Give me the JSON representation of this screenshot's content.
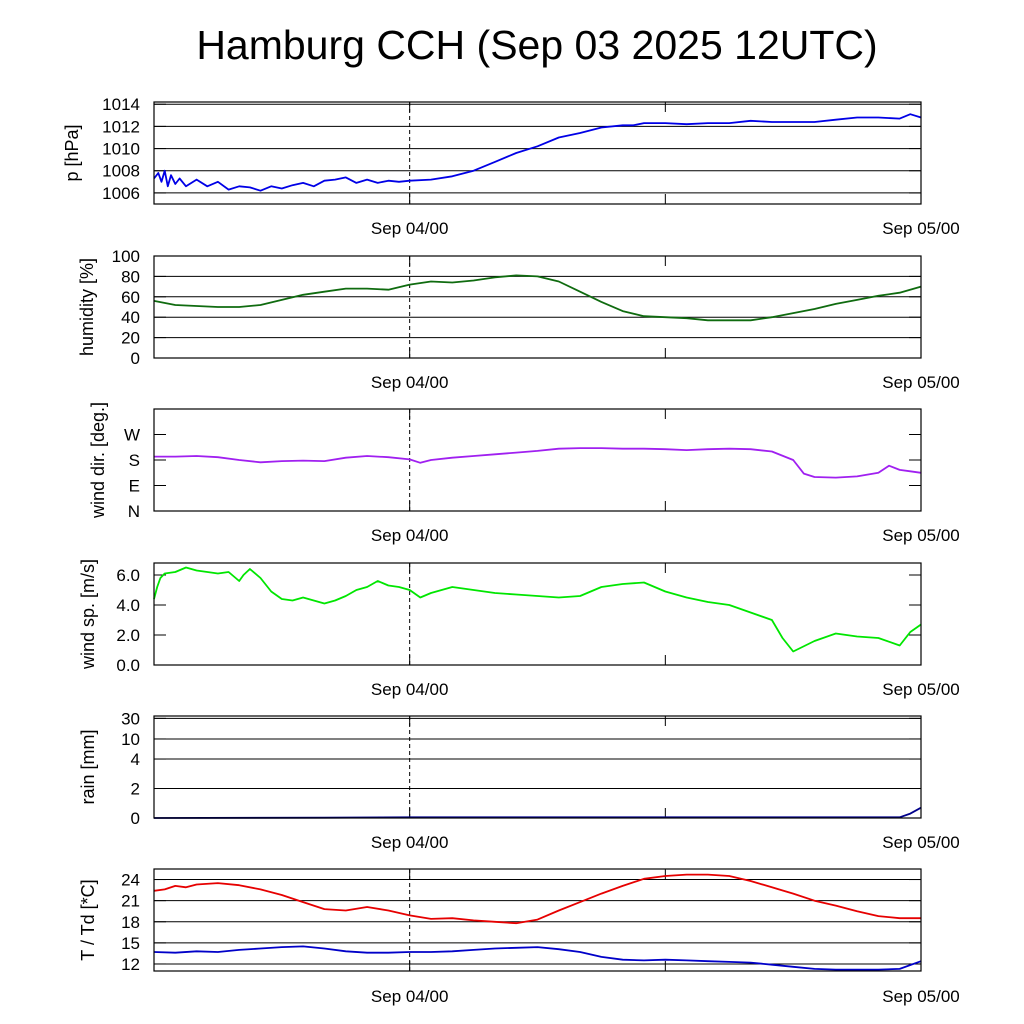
{
  "title": "Hamburg CCH (Sep 03 2025 12UTC)",
  "x_axis": {
    "type": "time",
    "start": "Sep 03 2025 12:00 UTC",
    "end": "Sep 05 2025 00:00 UTC",
    "range_hours": [
      0,
      36
    ],
    "tick_labels": [
      {
        "hour": 12,
        "label": "Sep 04/00"
      },
      {
        "hour": 36,
        "label": "Sep 05/00"
      }
    ],
    "minor_tick_hours": [
      24
    ],
    "dashed_marker_hour": 12
  },
  "chart_data": [
    {
      "type": "line",
      "ylabel": "p [hPa]",
      "ylim": [
        1005,
        1014.2
      ],
      "y_ticks": [
        1006,
        1008,
        1010,
        1012,
        1014
      ],
      "y_tick_labels": [
        "1006",
        "1008",
        "1010",
        "1012",
        "1014"
      ],
      "grid": true,
      "series": [
        {
          "color": "#0000e6",
          "x": [
            0,
            0.2,
            0.35,
            0.5,
            0.65,
            0.8,
            1,
            1.2,
            1.5,
            2,
            2.5,
            3,
            3.5,
            4,
            4.5,
            5,
            5.5,
            6,
            6.5,
            7,
            7.5,
            8,
            8.5,
            9,
            9.5,
            10,
            10.5,
            11,
            11.5,
            12,
            13,
            14,
            15,
            16,
            17,
            18,
            19,
            20,
            21,
            22,
            22.5,
            23,
            24,
            25,
            26,
            27,
            28,
            29,
            30,
            31,
            32,
            33,
            34,
            35,
            35.5,
            36
          ],
          "y": [
            1007.3,
            1007.8,
            1007.0,
            1008.0,
            1006.6,
            1007.6,
            1006.8,
            1007.3,
            1006.6,
            1007.2,
            1006.6,
            1007.0,
            1006.3,
            1006.6,
            1006.5,
            1006.2,
            1006.6,
            1006.4,
            1006.7,
            1006.9,
            1006.6,
            1007.1,
            1007.2,
            1007.4,
            1006.9,
            1007.2,
            1006.9,
            1007.1,
            1007.0,
            1007.1,
            1007.2,
            1007.5,
            1008.0,
            1008.8,
            1009.6,
            1010.2,
            1011.0,
            1011.4,
            1011.9,
            1012.1,
            1012.1,
            1012.3,
            1012.3,
            1012.2,
            1012.3,
            1012.3,
            1012.5,
            1012.4,
            1012.4,
            1012.4,
            1012.6,
            1012.8,
            1012.8,
            1012.7,
            1013.1,
            1012.8
          ]
        }
      ]
    },
    {
      "type": "line",
      "ylabel": "humidity [%]",
      "ylim": [
        0,
        100
      ],
      "y_ticks": [
        0,
        20,
        40,
        60,
        80,
        100
      ],
      "y_tick_labels": [
        "0",
        "20",
        "40",
        "60",
        "80",
        "100"
      ],
      "grid": true,
      "series": [
        {
          "color": "#0f6b0f",
          "x": [
            0,
            1,
            2,
            3,
            4,
            5,
            6,
            7,
            8,
            9,
            10,
            11,
            12,
            13,
            14,
            15,
            16,
            17,
            18,
            19,
            20,
            21,
            22,
            23,
            24,
            25,
            26,
            27,
            28,
            29,
            30,
            31,
            32,
            33,
            34,
            35,
            36
          ],
          "y": [
            56,
            52,
            51,
            50,
            50,
            52,
            57,
            62,
            65,
            68,
            68,
            67,
            72,
            75,
            74,
            76,
            79,
            81,
            80,
            75,
            65,
            55,
            46,
            41,
            40,
            39,
            37,
            37,
            37,
            40,
            44,
            48,
            53,
            57,
            61,
            64,
            70
          ]
        }
      ]
    },
    {
      "type": "line",
      "ylabel": "wind dir. [deg.]",
      "ylim": [
        0,
        360
      ],
      "y_ticks": [
        0,
        90,
        180,
        270
      ],
      "y_tick_labels": [
        "N",
        "E",
        "S",
        "W"
      ],
      "grid": false,
      "series": [
        {
          "color": "#a020f0",
          "x": [
            0,
            1,
            2,
            3,
            4,
            5,
            6,
            7,
            8,
            9,
            10,
            11,
            12,
            12.5,
            13,
            14,
            15,
            16,
            17,
            18,
            19,
            20,
            21,
            22,
            23,
            24,
            25,
            26,
            27,
            28,
            29,
            30,
            30.5,
            31,
            32,
            33,
            34,
            34.5,
            35,
            35.5,
            36
          ],
          "y": [
            192,
            192,
            194,
            190,
            180,
            172,
            176,
            178,
            176,
            188,
            194,
            190,
            182,
            170,
            180,
            188,
            194,
            200,
            206,
            212,
            220,
            222,
            222,
            220,
            220,
            218,
            215,
            218,
            220,
            218,
            210,
            180,
            132,
            120,
            118,
            122,
            135,
            160,
            145,
            140,
            135
          ]
        }
      ]
    },
    {
      "type": "line",
      "ylabel": "wind sp. [m/s]",
      "ylim": [
        0,
        6.8
      ],
      "y_ticks": [
        0,
        2,
        4,
        6
      ],
      "y_tick_labels": [
        "0.0",
        "2.0",
        "4.0",
        "6.0"
      ],
      "grid": false,
      "series": [
        {
          "color": "#00e600",
          "x": [
            0,
            0.15,
            0.3,
            0.5,
            1,
            1.5,
            2,
            2.5,
            3,
            3.5,
            4,
            4.2,
            4.5,
            5,
            5.5,
            6,
            6.5,
            7,
            8,
            8.5,
            9,
            9.5,
            10,
            10.5,
            11,
            11.5,
            12,
            12.5,
            13,
            14,
            15,
            16,
            17,
            18,
            19,
            20,
            21,
            22,
            23,
            24,
            25,
            26,
            27,
            28,
            29,
            29.5,
            30,
            31,
            32,
            33,
            34,
            35,
            35.5,
            36
          ],
          "y": [
            4.4,
            5.2,
            5.8,
            6.1,
            6.2,
            6.5,
            6.3,
            6.2,
            6.1,
            6.2,
            5.6,
            6.0,
            6.4,
            5.8,
            4.9,
            4.4,
            4.3,
            4.5,
            4.1,
            4.3,
            4.6,
            5.0,
            5.2,
            5.6,
            5.3,
            5.2,
            5.0,
            4.5,
            4.8,
            5.2,
            5.0,
            4.8,
            4.7,
            4.6,
            4.5,
            4.6,
            5.2,
            5.4,
            5.5,
            4.9,
            4.5,
            4.2,
            4.0,
            3.5,
            3.0,
            1.8,
            0.9,
            1.6,
            2.1,
            1.9,
            1.8,
            1.3,
            2.2,
            2.7
          ]
        }
      ]
    },
    {
      "type": "line",
      "ylabel": "rain [mm]",
      "y_scale": "nonlinear",
      "y_ticks": [
        0,
        2,
        4,
        10,
        30
      ],
      "y_tick_labels": [
        "0",
        "2",
        "4",
        "10",
        "30"
      ],
      "grid": true,
      "series": [
        {
          "color": "#00008b",
          "x": [
            0,
            8,
            12,
            24,
            35,
            35.5,
            36
          ],
          "y": [
            0,
            0.02,
            0.05,
            0.05,
            0.05,
            0.3,
            0.7
          ]
        }
      ]
    },
    {
      "type": "line",
      "ylabel": "T / Td [*C]",
      "ylim": [
        11,
        25.5
      ],
      "y_ticks": [
        12,
        15,
        18,
        21,
        24
      ],
      "y_tick_labels": [
        "12",
        "15",
        "18",
        "21",
        "24"
      ],
      "grid": true,
      "series": [
        {
          "color": "#e60000",
          "x": [
            0,
            0.5,
            1,
            1.5,
            2,
            3,
            4,
            5,
            6,
            7,
            8,
            9,
            10,
            11,
            12,
            13,
            14,
            15,
            16,
            17,
            18,
            19,
            20,
            21,
            22,
            23,
            24,
            25,
            26,
            27,
            28,
            29,
            30,
            31,
            32,
            33,
            34,
            35,
            36
          ],
          "y": [
            22.4,
            22.6,
            23.1,
            22.9,
            23.3,
            23.5,
            23.2,
            22.6,
            21.8,
            20.8,
            19.8,
            19.6,
            20.1,
            19.6,
            18.9,
            18.4,
            18.5,
            18.2,
            18.0,
            17.8,
            18.3,
            19.6,
            20.8,
            22.0,
            23.1,
            24.1,
            24.5,
            24.7,
            24.7,
            24.5,
            23.8,
            22.9,
            22.0,
            21.0,
            20.3,
            19.5,
            18.8,
            18.5,
            18.5
          ]
        },
        {
          "color": "#0000c8",
          "x": [
            0,
            1,
            2,
            3,
            4,
            5,
            6,
            7,
            8,
            9,
            10,
            11,
            12,
            13,
            14,
            15,
            16,
            17,
            18,
            19,
            20,
            21,
            22,
            23,
            24,
            25,
            26,
            27,
            28,
            29,
            30,
            31,
            32,
            33,
            34,
            35,
            36
          ],
          "y": [
            13.7,
            13.6,
            13.8,
            13.7,
            14.0,
            14.2,
            14.4,
            14.5,
            14.2,
            13.8,
            13.6,
            13.6,
            13.7,
            13.7,
            13.8,
            14.0,
            14.2,
            14.3,
            14.4,
            14.1,
            13.7,
            13.0,
            12.6,
            12.5,
            12.6,
            12.5,
            12.4,
            12.3,
            12.2,
            11.9,
            11.6,
            11.3,
            11.2,
            11.2,
            11.2,
            11.3,
            12.4
          ]
        }
      ]
    }
  ]
}
